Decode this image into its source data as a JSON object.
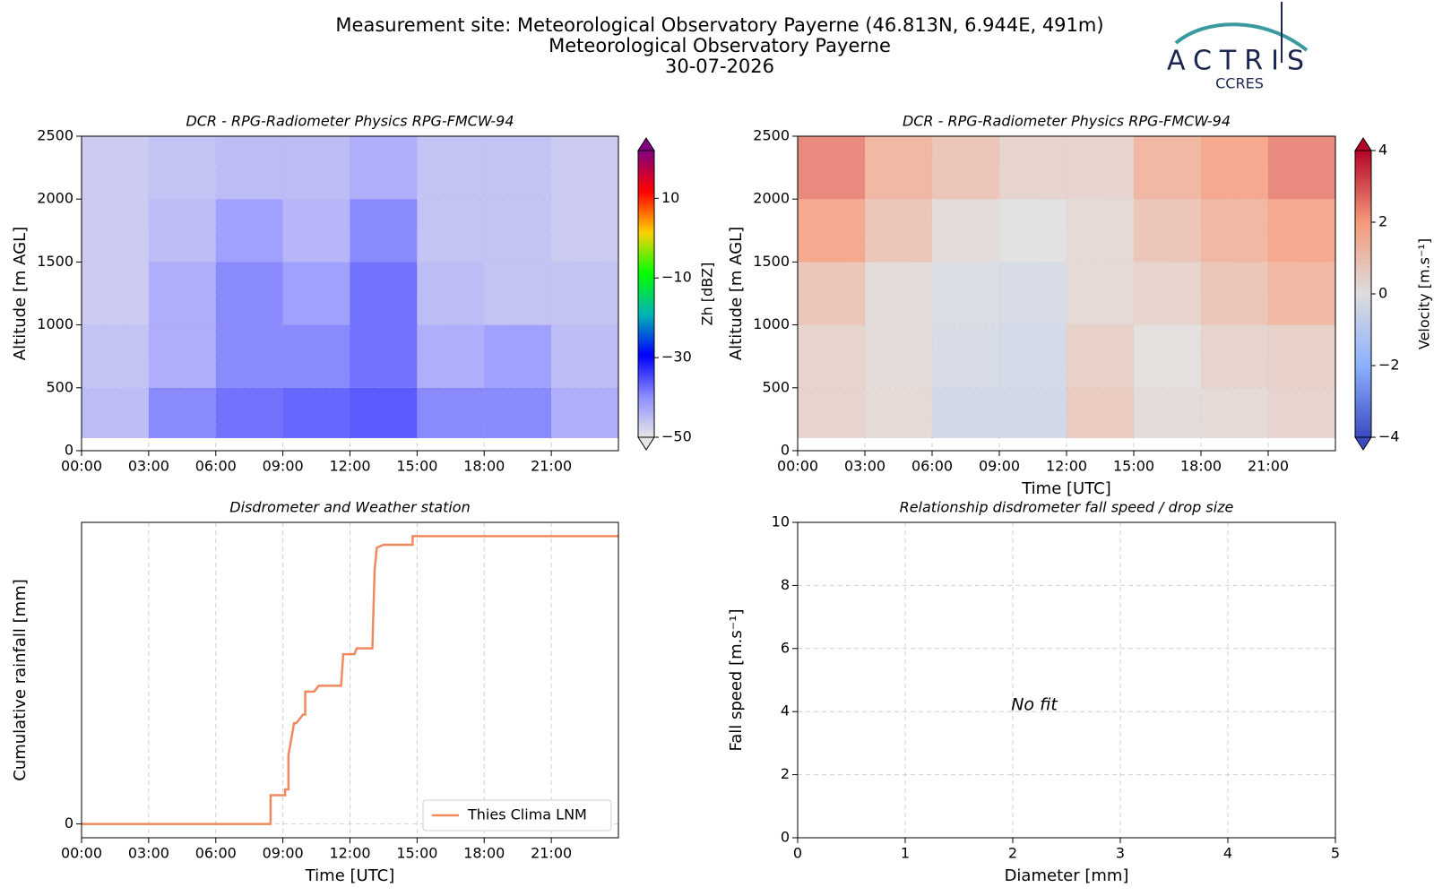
{
  "header": {
    "lines": [
      "Measurement site: Meteorological Observatory Payerne (46.813N, 6.944E, 491m)",
      "Meteorological Observatory Payerne",
      "30-07-2026"
    ]
  },
  "logo": {
    "name": "ACTRIS",
    "sub": "CCRES"
  },
  "chart_data": [
    {
      "type": "heatmap",
      "title": "DCR - RPG-Radiometer Physics RPG-FMCW-94",
      "ylabel": "Altitude [m AGL]",
      "xbins": [
        0,
        3,
        6,
        9,
        12,
        15,
        18,
        21,
        24
      ],
      "ybins": [
        100,
        500,
        1000,
        1500,
        2000,
        2500
      ],
      "values": [
        [
          -44,
          -38,
          -36,
          -35,
          -34,
          -38,
          -38,
          -42
        ],
        [
          -45,
          -42,
          -38,
          -38,
          -36,
          -42,
          -40,
          -44
        ],
        [
          -46,
          -42,
          -38,
          -40,
          -36,
          -44,
          -45,
          -45
        ],
        [
          -46,
          -44,
          -40,
          -43,
          -38,
          -45,
          -45,
          -46
        ],
        [
          -46,
          -45,
          -44,
          -44,
          -42,
          -45,
          -45,
          -46
        ]
      ],
      "xlim": [
        0,
        24
      ],
      "ylim": [
        0,
        2500
      ],
      "xticks": [
        {
          "value": 0,
          "label": "00:00"
        },
        {
          "value": 3,
          "label": "03:00"
        },
        {
          "value": 6,
          "label": "06:00"
        },
        {
          "value": 9,
          "label": "09:00"
        },
        {
          "value": 12,
          "label": "12:00"
        },
        {
          "value": 15,
          "label": "15:00"
        },
        {
          "value": 18,
          "label": "18:00"
        },
        {
          "value": 21,
          "label": "21:00"
        }
      ],
      "yticks": [
        0,
        500,
        1000,
        1500,
        2000,
        2500
      ],
      "grid": true,
      "colorbar_label": "Zh [dBZ]",
      "clim": [
        -50,
        22
      ],
      "cticks": [
        {
          "value": -50,
          "label": "−50"
        },
        {
          "value": -30,
          "label": "−30"
        },
        {
          "value": -10,
          "label": "−10"
        },
        10
      ],
      "colormap": [
        "#e6e6e6",
        "#8c8cff",
        "#0000ff",
        "#00b4b4",
        "#00ff00",
        "#ffd000",
        "#ff0000",
        "#800080"
      ]
    },
    {
      "type": "heatmap",
      "title": "DCR - RPG-Radiometer Physics RPG-FMCW-94",
      "ylabel": "Altitude [m AGL]",
      "xlabel": "Time [UTC]",
      "xbins": [
        0,
        3,
        6,
        9,
        12,
        15,
        18,
        21,
        24
      ],
      "ybins": [
        100,
        500,
        1000,
        1500,
        2000,
        2500
      ],
      "values": [
        [
          0.5,
          0.3,
          -0.5,
          -0.5,
          0.8,
          0.2,
          0.3,
          0.5
        ],
        [
          0.5,
          0.2,
          -0.3,
          -0.4,
          0.6,
          0.1,
          0.5,
          0.6
        ],
        [
          1,
          0.2,
          -0.2,
          -0.3,
          0.3,
          0.5,
          1,
          1.5
        ],
        [
          2,
          1,
          0.2,
          0,
          0.3,
          1,
          1.5,
          2
        ],
        [
          2.5,
          1.5,
          1,
          0.5,
          0.5,
          1.5,
          2,
          2.5
        ]
      ],
      "xlim": [
        0,
        24
      ],
      "ylim": [
        0,
        2500
      ],
      "xticks": [
        {
          "value": 0,
          "label": "00:00"
        },
        {
          "value": 3,
          "label": "03:00"
        },
        {
          "value": 6,
          "label": "06:00"
        },
        {
          "value": 9,
          "label": "09:00"
        },
        {
          "value": 12,
          "label": "12:00"
        },
        {
          "value": 15,
          "label": "15:00"
        },
        {
          "value": 18,
          "label": "18:00"
        },
        {
          "value": 21,
          "label": "21:00"
        }
      ],
      "yticks": [
        0,
        500,
        1000,
        1500,
        2000,
        2500
      ],
      "grid": true,
      "colorbar_label": "Velocity [m.s⁻¹]",
      "clim": [
        -4,
        4
      ],
      "cticks": [
        {
          "value": -4,
          "label": "−4"
        },
        {
          "value": -2,
          "label": "−2"
        },
        0,
        2,
        4
      ],
      "colormap": [
        "#3b4cc0",
        "#8db0fe",
        "#dddddd",
        "#f49a7b",
        "#b40426"
      ]
    },
    {
      "type": "line",
      "title": "Disdrometer and Weather station",
      "xlabel": "Time [UTC]",
      "ylabel": "Cumulative rainfall [mm]",
      "x": [
        0,
        8.45,
        8.45,
        9.1,
        9.1,
        9.25,
        9.25,
        9.5,
        9.6,
        9.9,
        10.0,
        10.0,
        10.4,
        10.6,
        11.6,
        11.7,
        12.2,
        12.3,
        13.0,
        13.1,
        13.2,
        13.5,
        14.8,
        14.8,
        24
      ],
      "series": [
        {
          "name": "Thies Clima LNM",
          "color": "#ef8a5f",
          "values": [
            0,
            0,
            1.0,
            1.0,
            1.2,
            1.2,
            2.4,
            3.5,
            3.5,
            3.8,
            3.8,
            4.6,
            4.6,
            4.8,
            4.8,
            5.9,
            5.9,
            6.1,
            6.1,
            8.8,
            9.6,
            9.7,
            9.7,
            10,
            10
          ]
        }
      ],
      "xlim": [
        0,
        24
      ],
      "ylim": [
        -0.48,
        10.48
      ],
      "xticks": [
        {
          "value": 0,
          "label": "00:00"
        },
        {
          "value": 3,
          "label": "03:00"
        },
        {
          "value": 6,
          "label": "06:00"
        },
        {
          "value": 9,
          "label": "09:00"
        },
        {
          "value": 12,
          "label": "12:00"
        },
        {
          "value": 15,
          "label": "15:00"
        },
        {
          "value": 18,
          "label": "18:00"
        },
        {
          "value": 21,
          "label": "21:00"
        }
      ],
      "yticks": [
        0
      ],
      "grid": true,
      "legend": "lower right"
    },
    {
      "type": "scatter",
      "title": "Relationship disdrometer fall speed / drop size",
      "xlabel": "Diameter [mm]",
      "ylabel": "Fall speed [m.s⁻¹]",
      "annotation": "No fit",
      "xlim": [
        0,
        5
      ],
      "ylim": [
        0,
        10
      ],
      "xticks": [
        0,
        1,
        2,
        3,
        4,
        5
      ],
      "yticks": [
        0,
        2,
        4,
        6,
        8,
        10
      ],
      "grid": true
    }
  ]
}
